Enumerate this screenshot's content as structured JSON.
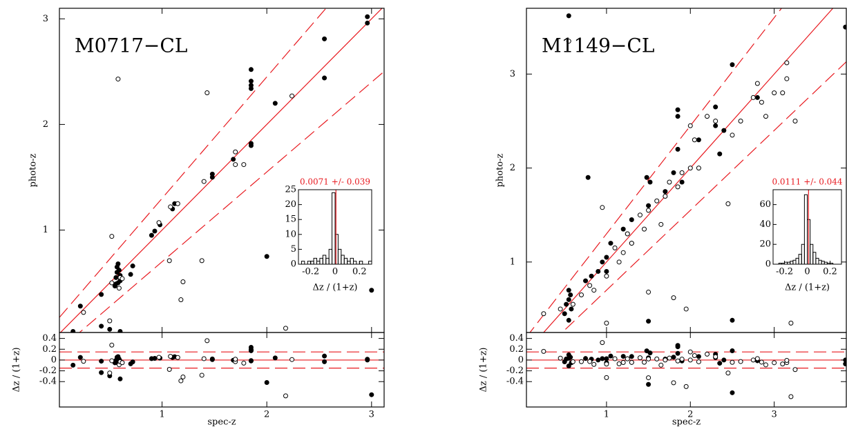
{
  "chart_data": [
    {
      "type": "scatter",
      "label": "M0717−CL",
      "xlabel": "spec-z",
      "ylabel": "photo-z",
      "residual_ylabel": "Δz / (1+z)",
      "xlim": [
        0.02,
        3.12
      ],
      "ylim": [
        0.03,
        3.1
      ],
      "xticks": [
        1,
        2,
        3
      ],
      "yticks": [
        1,
        2,
        3
      ],
      "residual_ylim": [
        -0.87,
        0.51
      ],
      "residual_yticks": [
        0.4,
        0.2,
        0,
        -0.2,
        -0.4
      ],
      "dashed_offset": 0.15,
      "line_color": "#e8191f",
      "series": [
        {
          "marker": "filled",
          "color": "#000000",
          "x": [
            0.15,
            0.22,
            0.42,
            0.42,
            0.5,
            0.55,
            0.56,
            0.57,
            0.57,
            0.58,
            0.58,
            0.59,
            0.6,
            0.6,
            0.6,
            0.56,
            0.7,
            0.72,
            0.9,
            0.93,
            0.98,
            1.1,
            1.12,
            1.48,
            1.48,
            1.68,
            1.85,
            1.85,
            1.85,
            1.85,
            1.85,
            1.85,
            2.0,
            2.08,
            2.55,
            2.55,
            2.96,
            2.96,
            3.0
          ],
          "y": [
            0.04,
            0.28,
            0.39,
            0.09,
            0.06,
            0.47,
            0.55,
            0.6,
            0.65,
            0.68,
            0.5,
            0.62,
            0.57,
            0.52,
            0.04,
            0.49,
            0.58,
            0.66,
            0.95,
            0.99,
            1.05,
            1.2,
            1.25,
            1.53,
            1.5,
            1.67,
            1.8,
            1.82,
            2.34,
            2.37,
            2.41,
            2.52,
            0.75,
            2.2,
            2.81,
            2.44,
            3.02,
            2.96,
            0.43
          ]
        },
        {
          "marker": "open",
          "color": "#000000",
          "x": [
            0.25,
            0.5,
            0.52,
            0.52,
            0.58,
            0.59,
            0.6,
            0.97,
            1.07,
            1.08,
            1.18,
            1.2,
            1.15,
            1.38,
            1.4,
            1.43,
            1.7,
            1.7,
            1.78,
            2.18,
            2.24,
            0.62
          ],
          "y": [
            0.22,
            0.14,
            0.94,
            0.5,
            2.43,
            0.45,
            0.55,
            1.07,
            0.71,
            1.22,
            0.34,
            0.51,
            1.25,
            0.71,
            1.46,
            2.3,
            1.62,
            1.74,
            1.62,
            0.07,
            2.27,
            0.54
          ]
        }
      ],
      "inset": {
        "type": "histogram",
        "title": "0.0071 +/- 0.039",
        "xlabel": "Δz / (1+z)",
        "mean": 0.0071,
        "color": "#000000",
        "mean_color": "#e8191f",
        "bins": [
          -0.3,
          -0.275,
          -0.25,
          -0.225,
          -0.2,
          -0.175,
          -0.15,
          -0.125,
          -0.1,
          -0.075,
          -0.05,
          -0.025,
          0,
          0.025,
          0.05,
          0.075,
          0.1,
          0.125,
          0.15,
          0.175,
          0.2,
          0.225,
          0.25,
          0.275,
          0.3
        ],
        "counts": [
          0,
          1,
          0,
          1,
          1,
          2,
          1,
          2,
          3,
          2,
          5,
          24,
          10,
          5,
          3,
          2,
          1,
          2,
          1,
          0,
          1,
          0,
          0,
          1
        ],
        "xlim": [
          -0.3,
          0.3
        ],
        "ylim": [
          0,
          25
        ],
        "xticks": [
          -0.2,
          0,
          0.2
        ],
        "yticks": [
          0,
          5,
          10,
          15,
          20,
          25
        ]
      }
    },
    {
      "type": "scatter",
      "label": "M1149−CL",
      "xlabel": "spec-z",
      "ylabel": "photo-z",
      "residual_ylabel": "Δz / (1+z)",
      "xlim": [
        0.045,
        3.86
      ],
      "ylim": [
        0.25,
        3.7
      ],
      "xticks": [
        1,
        2,
        3
      ],
      "yticks": [
        1,
        2,
        3
      ],
      "residual_ylim": [
        -0.87,
        0.51
      ],
      "residual_yticks": [
        0.4,
        0.2,
        0,
        -0.2,
        -0.4
      ],
      "dashed_offset": 0.15,
      "line_color": "#e8191f",
      "series": [
        {
          "marker": "filled",
          "color": "#000000",
          "x": [
            0.55,
            0.55,
            0.5,
            0.55,
            0.57,
            0.52,
            0.58,
            0.55,
            0.55,
            0.75,
            0.78,
            0.82,
            0.9,
            0.95,
            1.0,
            1.0,
            1.05,
            1.2,
            1.25,
            1.3,
            1.48,
            1.5,
            1.52,
            1.5,
            1.7,
            1.8,
            1.85,
            1.85,
            1.85,
            1.9,
            2.1,
            2.3,
            2.3,
            2.35,
            2.4,
            2.5,
            2.5,
            2.8,
            3.85,
            3.85
          ],
          "y": [
            3.76,
            3.62,
            0.45,
            0.6,
            0.65,
            0.55,
            0.5,
            0.38,
            0.7,
            0.8,
            1.9,
            0.85,
            0.9,
            1.0,
            1.05,
            0.9,
            1.2,
            1.35,
            1.3,
            1.45,
            1.9,
            0.37,
            1.85,
            1.6,
            1.75,
            1.95,
            2.62,
            2.55,
            2.2,
            1.85,
            2.3,
            2.45,
            2.65,
            2.15,
            2.4,
            3.1,
            0.38,
            2.75,
            3.5,
            3.85
          ]
        },
        {
          "marker": "open",
          "color": "#000000",
          "x": [
            0.25,
            0.45,
            0.55,
            0.6,
            0.7,
            0.8,
            0.85,
            0.95,
            1.0,
            1.0,
            1.1,
            1.15,
            1.2,
            1.25,
            1.3,
            1.4,
            1.45,
            1.5,
            1.5,
            1.6,
            1.65,
            1.7,
            1.75,
            1.8,
            1.85,
            1.9,
            1.95,
            2.0,
            2.05,
            2.2,
            2.3,
            2.45,
            2.5,
            2.6,
            2.75,
            2.8,
            2.85,
            2.9,
            3.0,
            3.1,
            3.15,
            3.15,
            3.2,
            3.25,
            2.0,
            2.1,
            1.3
          ],
          "y": [
            0.45,
            0.5,
            3.35,
            0.55,
            0.65,
            0.75,
            0.7,
            1.58,
            0.35,
            0.85,
            1.15,
            1.0,
            1.1,
            1.3,
            1.2,
            1.5,
            1.35,
            0.68,
            1.55,
            1.65,
            1.4,
            1.7,
            1.85,
            0.62,
            1.8,
            1.95,
            0.5,
            2.45,
            2.3,
            2.55,
            2.5,
            1.62,
            2.35,
            2.5,
            2.75,
            2.9,
            2.7,
            2.55,
            2.8,
            2.8,
            2.95,
            3.12,
            0.35,
            2.5,
            2.0,
            2.0,
            1.2
          ]
        }
      ],
      "inset": {
        "type": "histogram",
        "title": "0.0111 +/- 0.044",
        "xlabel": "Δz / (1+z)",
        "mean": 0.0111,
        "color": "#000000",
        "mean_color": "#e8191f",
        "bins": [
          -0.3,
          -0.275,
          -0.25,
          -0.225,
          -0.2,
          -0.175,
          -0.15,
          -0.125,
          -0.1,
          -0.075,
          -0.05,
          -0.025,
          0,
          0.025,
          0.05,
          0.075,
          0.1,
          0.125,
          0.15,
          0.175,
          0.2,
          0.225,
          0.25,
          0.275,
          0.3
        ],
        "counts": [
          0,
          0,
          1,
          1,
          2,
          2,
          3,
          4,
          6,
          10,
          20,
          70,
          45,
          20,
          12,
          6,
          4,
          3,
          2,
          1,
          1,
          0,
          0,
          0
        ],
        "xlim": [
          -0.3,
          0.3
        ],
        "ylim": [
          0,
          75
        ],
        "xticks": [
          -0.2,
          0,
          0.2
        ],
        "yticks": [
          0,
          20,
          40,
          60
        ]
      }
    }
  ]
}
